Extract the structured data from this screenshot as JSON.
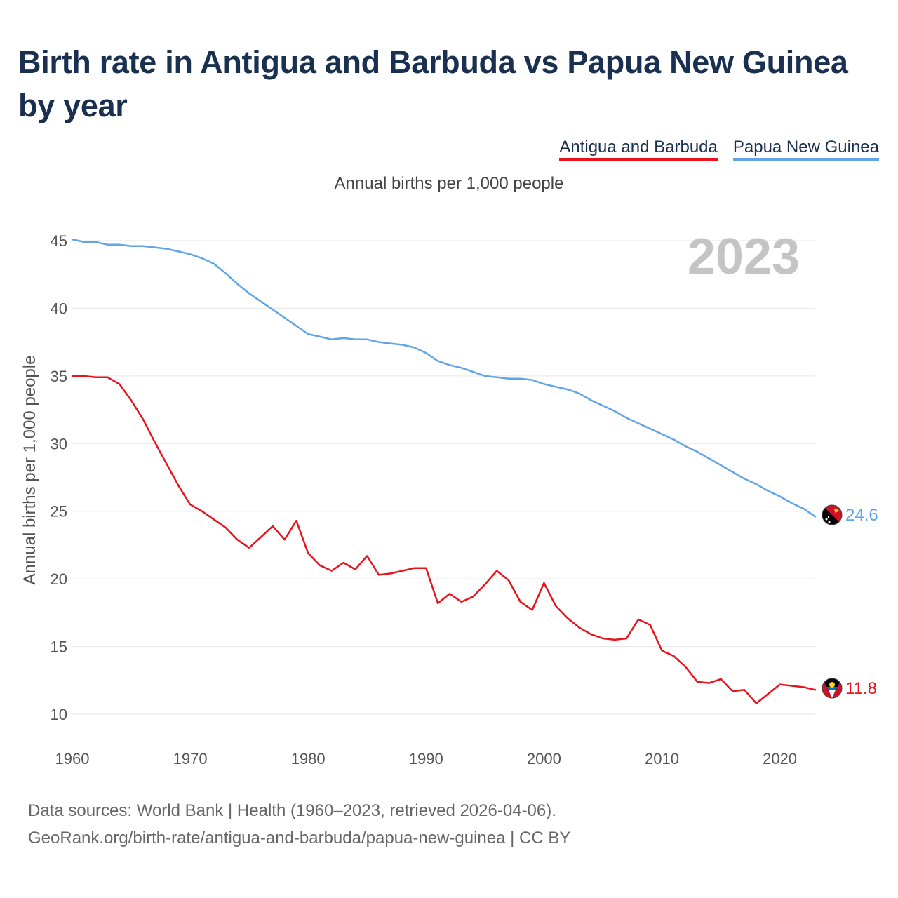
{
  "title": "Birth rate in Antigua and Barbuda vs Papua New Guinea by year",
  "subtitle": "Annual births per 1,000 people",
  "legend": [
    {
      "label": "Antigua and Barbuda",
      "color": "#e8141c"
    },
    {
      "label": "Papua New Guinea",
      "color": "#60a5e8"
    }
  ],
  "year_watermark": "2023",
  "footer": {
    "line1": "Data sources: World Bank | Health (1960–2023, retrieved 2026-04-06).",
    "line2": "GeoRank.org/birth-rate/antigua-and-barbuda/papua-new-guinea | CC BY"
  },
  "chart_data": {
    "type": "line",
    "title": "Birth rate in Antigua and Barbuda vs Papua New Guinea by year",
    "xlabel": "",
    "ylabel": "Annual births per 1,000 people",
    "xlim": [
      1960,
      2023
    ],
    "ylim": [
      10,
      45
    ],
    "xticks": [
      1960,
      1970,
      1980,
      1990,
      2000,
      2010,
      2020
    ],
    "yticks": [
      10,
      15,
      20,
      25,
      30,
      35,
      40,
      45
    ],
    "grid": true,
    "x": [
      1960,
      1961,
      1962,
      1963,
      1964,
      1965,
      1966,
      1967,
      1968,
      1969,
      1970,
      1971,
      1972,
      1973,
      1974,
      1975,
      1976,
      1977,
      1978,
      1979,
      1980,
      1981,
      1982,
      1983,
      1984,
      1985,
      1986,
      1987,
      1988,
      1989,
      1990,
      1991,
      1992,
      1993,
      1994,
      1995,
      1996,
      1997,
      1998,
      1999,
      2000,
      2001,
      2002,
      2003,
      2004,
      2005,
      2006,
      2007,
      2008,
      2009,
      2010,
      2011,
      2012,
      2013,
      2014,
      2015,
      2016,
      2017,
      2018,
      2019,
      2020,
      2021,
      2022,
      2023
    ],
    "series": [
      {
        "name": "Antigua and Barbuda",
        "color": "#e8141c",
        "end_label": "11.8",
        "values": [
          35.0,
          35.0,
          34.9,
          34.9,
          34.4,
          33.2,
          31.8,
          30.1,
          28.5,
          26.9,
          25.5,
          25.0,
          24.4,
          23.8,
          22.9,
          22.3,
          23.1,
          23.9,
          22.9,
          24.3,
          21.9,
          21.0,
          20.6,
          21.2,
          20.7,
          21.7,
          20.3,
          20.4,
          20.6,
          20.8,
          20.8,
          18.2,
          18.9,
          18.3,
          18.7,
          19.6,
          20.6,
          19.9,
          18.3,
          17.7,
          19.7,
          18.0,
          17.1,
          16.4,
          15.9,
          15.6,
          15.5,
          15.6,
          17.0,
          16.6,
          14.7,
          14.3,
          13.5,
          12.4,
          12.3,
          12.6,
          11.7,
          11.8,
          10.8,
          11.5,
          12.2,
          12.1,
          12.0,
          11.8
        ]
      },
      {
        "name": "Papua New Guinea",
        "color": "#60a5e8",
        "end_label": "24.6",
        "values": [
          45.1,
          44.9,
          44.9,
          44.7,
          44.7,
          44.6,
          44.6,
          44.5,
          44.4,
          44.2,
          44.0,
          43.7,
          43.3,
          42.6,
          41.8,
          41.1,
          40.5,
          39.9,
          39.3,
          38.7,
          38.1,
          37.9,
          37.7,
          37.8,
          37.7,
          37.7,
          37.5,
          37.4,
          37.3,
          37.1,
          36.7,
          36.1,
          35.8,
          35.6,
          35.3,
          35.0,
          34.9,
          34.8,
          34.8,
          34.7,
          34.4,
          34.2,
          34.0,
          33.7,
          33.2,
          32.8,
          32.4,
          31.9,
          31.5,
          31.1,
          30.7,
          30.3,
          29.8,
          29.4,
          28.9,
          28.4,
          27.9,
          27.4,
          27.0,
          26.5,
          26.1,
          25.6,
          25.2,
          24.6
        ]
      }
    ]
  }
}
